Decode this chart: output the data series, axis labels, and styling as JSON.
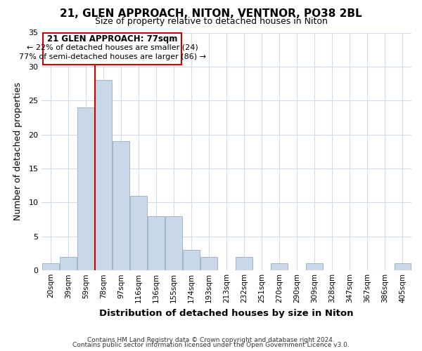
{
  "title": "21, GLEN APPROACH, NITON, VENTNOR, PO38 2BL",
  "subtitle": "Size of property relative to detached houses in Niton",
  "xlabel": "Distribution of detached houses by size in Niton",
  "ylabel": "Number of detached properties",
  "bin_labels": [
    "20sqm",
    "39sqm",
    "59sqm",
    "78sqm",
    "97sqm",
    "116sqm",
    "136sqm",
    "155sqm",
    "174sqm",
    "193sqm",
    "213sqm",
    "232sqm",
    "251sqm",
    "270sqm",
    "290sqm",
    "309sqm",
    "328sqm",
    "347sqm",
    "367sqm",
    "386sqm",
    "405sqm"
  ],
  "bar_heights": [
    1,
    2,
    24,
    28,
    19,
    11,
    8,
    8,
    3,
    2,
    0,
    2,
    0,
    1,
    0,
    1,
    0,
    0,
    0,
    0,
    1
  ],
  "bar_color": "#c8d8e8",
  "bar_edge_color": "#a0b4cc",
  "vline_x_index": 3,
  "vline_color": "#cc0000",
  "ylim": [
    0,
    35
  ],
  "yticks": [
    0,
    5,
    10,
    15,
    20,
    25,
    30,
    35
  ],
  "annotation_title": "21 GLEN APPROACH: 77sqm",
  "annotation_line1": "← 22% of detached houses are smaller (24)",
  "annotation_line2": "77% of semi-detached houses are larger (86) →",
  "annotation_box_color": "#ffffff",
  "annotation_box_edge": "#cc0000",
  "footer_line1": "Contains HM Land Registry data © Crown copyright and database right 2024.",
  "footer_line2": "Contains public sector information licensed under the Open Government Licence v3.0.",
  "background_color": "#ffffff",
  "grid_color": "#d0dce8"
}
